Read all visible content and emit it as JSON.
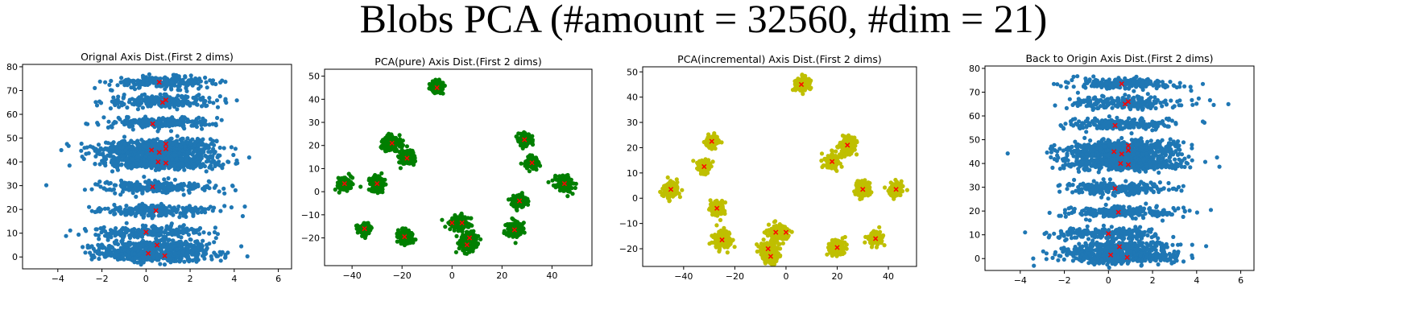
{
  "figure": {
    "title": "Blobs PCA (#amount = 32560, #dim = 21)"
  },
  "colors": {
    "blue": "#1f77b4",
    "green": "#007f00",
    "olive": "#bfbf00",
    "red": "#ff0000",
    "frame": "#000000"
  },
  "chart_data": [
    {
      "type": "scatter",
      "title": "Orignal Axis Dist.(First 2 dims)",
      "point_color": "#1f77b4",
      "xlim": [
        -5.6,
        6.6
      ],
      "ylim": [
        -5,
        81
      ],
      "xticks": [
        -4,
        -2,
        0,
        2,
        4,
        6
      ],
      "yticks": [
        0,
        10,
        20,
        30,
        40,
        50,
        60,
        70,
        80
      ],
      "clusters": [
        {
          "cx": 0.8,
          "cy": 73.5,
          "sx": 1.2,
          "sy": 1.2
        },
        {
          "cx": 0.8,
          "cy": 65.5,
          "sx": 1.3,
          "sy": 1.3
        },
        {
          "cx": 0.5,
          "cy": 56.5,
          "sx": 1.25,
          "sy": 1.2
        },
        {
          "cx": 0.3,
          "cy": 45.5,
          "sx": 1.3,
          "sy": 1.3
        },
        {
          "cx": 0.6,
          "cy": 43.5,
          "sx": 1.3,
          "sy": 1.3
        },
        {
          "cx": 0.9,
          "cy": 47.5,
          "sx": 1.3,
          "sy": 1.3
        },
        {
          "cx": 0.6,
          "cy": 40.0,
          "sx": 1.3,
          "sy": 1.3
        },
        {
          "cx": 0.9,
          "cy": 39.5,
          "sx": 1.3,
          "sy": 1.3
        },
        {
          "cx": 0.3,
          "cy": 29.5,
          "sx": 1.3,
          "sy": 1.3
        },
        {
          "cx": 0.5,
          "cy": 19.5,
          "sx": 1.3,
          "sy": 1.2
        },
        {
          "cx": 0.0,
          "cy": 10.5,
          "sx": 1.3,
          "sy": 1.2
        },
        {
          "cx": 0.5,
          "cy": 5.0,
          "sx": 1.3,
          "sy": 1.3
        },
        {
          "cx": 0.1,
          "cy": 1.5,
          "sx": 1.3,
          "sy": 1.3
        },
        {
          "cx": 0.8,
          "cy": 0.5,
          "sx": 1.3,
          "sy": 1.3
        }
      ],
      "centers": [
        [
          0.6,
          73.5
        ],
        [
          0.9,
          66
        ],
        [
          0.75,
          65
        ],
        [
          0.3,
          56
        ],
        [
          0.25,
          45
        ],
        [
          0.6,
          44
        ],
        [
          0.9,
          47.5
        ],
        [
          0.9,
          45.5
        ],
        [
          0.55,
          40
        ],
        [
          0.9,
          39.5
        ],
        [
          0.3,
          29.5
        ],
        [
          0.45,
          19.5
        ],
        [
          0.0,
          10.5
        ],
        [
          0.5,
          5
        ],
        [
          0.1,
          1.5
        ],
        [
          0.85,
          0.5
        ]
      ]
    },
    {
      "type": "scatter",
      "title": "PCA(pure) Axis Dist.(First 2 dims)",
      "point_color": "#007f00",
      "xlim": [
        -51,
        56
      ],
      "ylim": [
        -32,
        53
      ],
      "xticks": [
        -40,
        -20,
        0,
        20,
        40
      ],
      "yticks": [
        -20,
        -10,
        0,
        10,
        20,
        30,
        40,
        50
      ],
      "clusters": [
        {
          "cx": -6,
          "cy": 45,
          "sx": 1.3,
          "sy": 1.3
        },
        {
          "cx": -24,
          "cy": 21,
          "sx": 1.8,
          "sy": 1.8
        },
        {
          "cx": -18,
          "cy": 14.5,
          "sx": 1.6,
          "sy": 1.6
        },
        {
          "cx": -43,
          "cy": 3.5,
          "sx": 1.3,
          "sy": 1.3
        },
        {
          "cx": -30,
          "cy": 3.5,
          "sx": 1.5,
          "sy": 1.5
        },
        {
          "cx": 29,
          "cy": 22.5,
          "sx": 1.3,
          "sy": 1.3
        },
        {
          "cx": 32,
          "cy": 12.5,
          "sx": 1.3,
          "sy": 1.3
        },
        {
          "cx": 45,
          "cy": 3.5,
          "sx": 1.6,
          "sy": 1.6
        },
        {
          "cx": 27,
          "cy": -4,
          "sx": 1.4,
          "sy": 1.4
        },
        {
          "cx": -35,
          "cy": -16,
          "sx": 1.3,
          "sy": 1.3
        },
        {
          "cx": -19,
          "cy": -19.5,
          "sx": 1.6,
          "sy": 1.6
        },
        {
          "cx": 3,
          "cy": -13.5,
          "sx": 2.0,
          "sy": 1.6
        },
        {
          "cx": 7,
          "cy": -20.5,
          "sx": 1.6,
          "sy": 1.6
        },
        {
          "cx": 6,
          "cy": -23,
          "sx": 1.5,
          "sy": 1.5
        },
        {
          "cx": 25,
          "cy": -16.5,
          "sx": 1.8,
          "sy": 1.8
        }
      ],
      "centers": [
        [
          -6,
          45
        ],
        [
          -24,
          21
        ],
        [
          -18,
          14.5
        ],
        [
          -43,
          3.5
        ],
        [
          -30,
          3.5
        ],
        [
          29,
          22.5
        ],
        [
          32,
          12.5
        ],
        [
          45,
          3.5
        ],
        [
          27,
          -4
        ],
        [
          -35,
          -16
        ],
        [
          -19,
          -19.5
        ],
        [
          0,
          -13.5
        ],
        [
          4,
          -13.5
        ],
        [
          7,
          -20
        ],
        [
          6,
          -23
        ],
        [
          25,
          -16.5
        ]
      ]
    },
    {
      "type": "scatter",
      "title": "PCA(incremental) Axis Dist.(First 2 dims)",
      "point_color": "#bfbf00",
      "xlim": [
        -56,
        51
      ],
      "ylim": [
        -27,
        52
      ],
      "xticks": [
        -40,
        -20,
        0,
        20,
        40
      ],
      "yticks": [
        -20,
        -10,
        0,
        10,
        20,
        30,
        40,
        50
      ],
      "clusters": [
        {
          "cx": 6,
          "cy": 45,
          "sx": 1.3,
          "sy": 1.3
        },
        {
          "cx": -29,
          "cy": 22.5,
          "sx": 1.3,
          "sy": 1.3
        },
        {
          "cx": -32,
          "cy": 12.5,
          "sx": 1.3,
          "sy": 1.3
        },
        {
          "cx": 24,
          "cy": 21,
          "sx": 1.8,
          "sy": 1.8
        },
        {
          "cx": 18,
          "cy": 14.5,
          "sx": 1.6,
          "sy": 1.6
        },
        {
          "cx": -45,
          "cy": 3.5,
          "sx": 1.6,
          "sy": 1.6
        },
        {
          "cx": 30,
          "cy": 3.5,
          "sx": 1.5,
          "sy": 1.5
        },
        {
          "cx": 43,
          "cy": 3.5,
          "sx": 1.3,
          "sy": 1.3
        },
        {
          "cx": -27,
          "cy": -4,
          "sx": 1.4,
          "sy": 1.4
        },
        {
          "cx": -25,
          "cy": -16.5,
          "sx": 1.8,
          "sy": 1.8
        },
        {
          "cx": -3,
          "cy": -13.5,
          "sx": 2.0,
          "sy": 1.6
        },
        {
          "cx": -7,
          "cy": -20.5,
          "sx": 1.6,
          "sy": 1.6
        },
        {
          "cx": -6,
          "cy": -23,
          "sx": 1.5,
          "sy": 1.5
        },
        {
          "cx": 20,
          "cy": -19.5,
          "sx": 1.6,
          "sy": 1.6
        },
        {
          "cx": 35,
          "cy": -16,
          "sx": 1.3,
          "sy": 1.3
        }
      ],
      "centers": [
        [
          6,
          45
        ],
        [
          -29,
          22.5
        ],
        [
          -32,
          12.5
        ],
        [
          24,
          21
        ],
        [
          18,
          14.5
        ],
        [
          -45,
          3.5
        ],
        [
          30,
          3.5
        ],
        [
          43,
          3.5
        ],
        [
          -27,
          -4
        ],
        [
          -25,
          -16.5
        ],
        [
          -4,
          -13.5
        ],
        [
          0,
          -13.5
        ],
        [
          -7,
          -20
        ],
        [
          -6,
          -23
        ],
        [
          20,
          -19.5
        ],
        [
          35,
          -16
        ]
      ]
    },
    {
      "type": "scatter",
      "title": "Back to Origin Axis Dist.(First 2 dims)",
      "point_color": "#1f77b4",
      "xlim": [
        -5.6,
        6.6
      ],
      "ylim": [
        -5,
        81
      ],
      "xticks": [
        -4,
        -2,
        0,
        2,
        4,
        6
      ],
      "yticks": [
        0,
        10,
        20,
        30,
        40,
        50,
        60,
        70,
        80
      ],
      "clusters": [
        {
          "cx": 0.8,
          "cy": 73.5,
          "sx": 1.2,
          "sy": 1.2
        },
        {
          "cx": 0.8,
          "cy": 65.5,
          "sx": 1.3,
          "sy": 1.3
        },
        {
          "cx": 0.5,
          "cy": 56.5,
          "sx": 1.25,
          "sy": 1.2
        },
        {
          "cx": 0.3,
          "cy": 45.5,
          "sx": 1.3,
          "sy": 1.3
        },
        {
          "cx": 0.6,
          "cy": 43.5,
          "sx": 1.3,
          "sy": 1.3
        },
        {
          "cx": 0.9,
          "cy": 47.5,
          "sx": 1.3,
          "sy": 1.3
        },
        {
          "cx": 0.6,
          "cy": 40.0,
          "sx": 1.3,
          "sy": 1.3
        },
        {
          "cx": 0.9,
          "cy": 39.5,
          "sx": 1.3,
          "sy": 1.3
        },
        {
          "cx": 0.3,
          "cy": 29.5,
          "sx": 1.3,
          "sy": 1.3
        },
        {
          "cx": 0.5,
          "cy": 19.5,
          "sx": 1.3,
          "sy": 1.2
        },
        {
          "cx": 0.0,
          "cy": 10.5,
          "sx": 1.3,
          "sy": 1.2
        },
        {
          "cx": 0.5,
          "cy": 5.0,
          "sx": 1.3,
          "sy": 1.3
        },
        {
          "cx": 0.1,
          "cy": 1.5,
          "sx": 1.3,
          "sy": 1.3
        },
        {
          "cx": 0.8,
          "cy": 0.5,
          "sx": 1.3,
          "sy": 1.3
        }
      ],
      "centers": [
        [
          0.6,
          73.5
        ],
        [
          0.9,
          66
        ],
        [
          0.75,
          65
        ],
        [
          0.3,
          56
        ],
        [
          0.25,
          45
        ],
        [
          0.6,
          44
        ],
        [
          0.9,
          47.5
        ],
        [
          0.9,
          45.5
        ],
        [
          0.55,
          40
        ],
        [
          0.9,
          39.5
        ],
        [
          0.3,
          29.5
        ],
        [
          0.45,
          19.5
        ],
        [
          0.0,
          10.5
        ],
        [
          0.5,
          5
        ],
        [
          0.1,
          1.5
        ],
        [
          0.85,
          0.5
        ]
      ]
    }
  ]
}
